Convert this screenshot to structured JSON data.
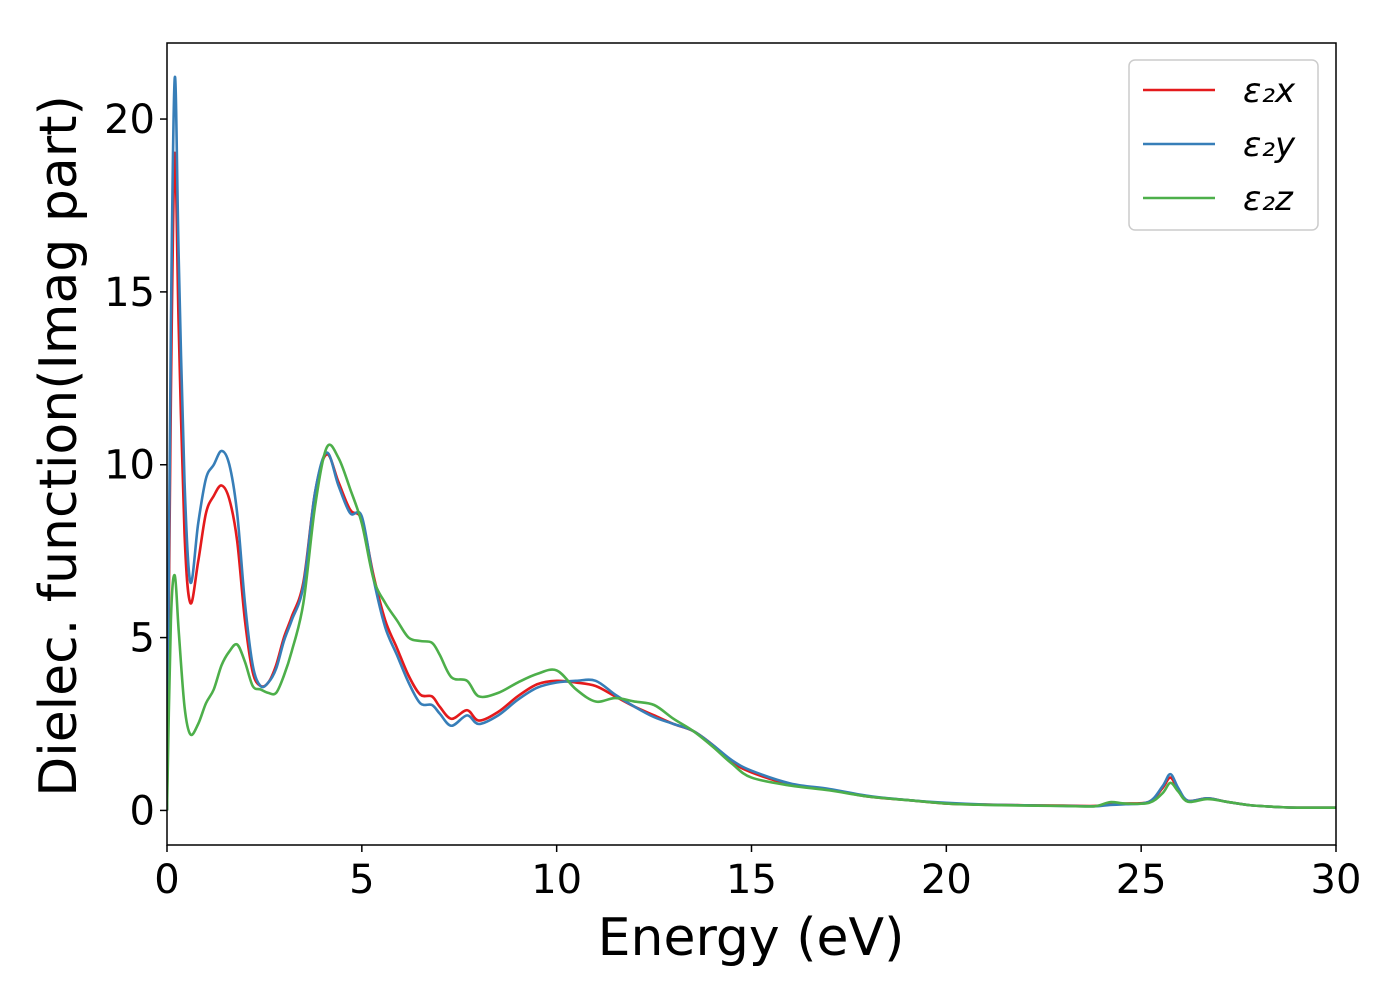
{
  "chart_data": {
    "type": "line",
    "title": "",
    "xlabel": "Energy (eV)",
    "ylabel": "Dielec. function(Imag part)",
    "xlim": [
      0,
      30
    ],
    "ylim": [
      -1,
      22.2
    ],
    "xticks": [
      0,
      5,
      10,
      15,
      20,
      25,
      30
    ],
    "xtick_labels": [
      "0",
      "5",
      "10",
      "15",
      "20",
      "25",
      "30"
    ],
    "yticks": [
      0,
      5,
      10,
      15,
      20
    ],
    "ytick_labels": [
      "0",
      "5",
      "10",
      "15",
      "20"
    ],
    "grid": false,
    "legend_position": "top-right",
    "series": [
      {
        "name": "ε₂x",
        "color": "#e41a1c",
        "x": [
          0,
          0.1,
          0.2,
          0.3,
          0.45,
          0.6,
          0.8,
          1.0,
          1.2,
          1.4,
          1.6,
          1.8,
          2.0,
          2.2,
          2.4,
          2.6,
          2.8,
          3.0,
          3.2,
          3.5,
          3.8,
          4.1,
          4.4,
          4.7,
          5.0,
          5.3,
          5.6,
          5.9,
          6.2,
          6.5,
          6.8,
          7.0,
          7.3,
          7.7,
          8.0,
          8.5,
          9.0,
          9.5,
          10.0,
          10.5,
          11.0,
          11.5,
          12.0,
          12.5,
          13.0,
          13.5,
          14.0,
          14.5,
          15.0,
          16.0,
          17.0,
          18.0,
          19.0,
          20.0,
          21.0,
          22.0,
          23.0,
          23.8,
          24.2,
          24.6,
          25.2,
          25.55,
          25.75,
          25.95,
          26.2,
          26.7,
          27.2,
          27.8,
          28.5,
          29.0,
          30.0
        ],
        "y": [
          0,
          12,
          19,
          14,
          8,
          6,
          7.2,
          8.6,
          9.1,
          9.4,
          9.0,
          7.8,
          5.5,
          4.0,
          3.6,
          3.7,
          4.2,
          5.0,
          5.6,
          6.6,
          9.2,
          10.3,
          9.5,
          8.7,
          8.4,
          6.8,
          5.5,
          4.7,
          3.9,
          3.35,
          3.3,
          3.0,
          2.65,
          2.9,
          2.6,
          2.85,
          3.3,
          3.65,
          3.75,
          3.7,
          3.6,
          3.3,
          3.0,
          2.75,
          2.5,
          2.3,
          1.9,
          1.4,
          1.1,
          0.75,
          0.6,
          0.4,
          0.3,
          0.2,
          0.17,
          0.15,
          0.14,
          0.13,
          0.18,
          0.2,
          0.25,
          0.65,
          0.95,
          0.6,
          0.28,
          0.35,
          0.25,
          0.15,
          0.1,
          0.08,
          0.08
        ]
      },
      {
        "name": "ε₂y",
        "color": "#377eb8",
        "x": [
          0,
          0.1,
          0.2,
          0.3,
          0.45,
          0.6,
          0.8,
          1.0,
          1.2,
          1.4,
          1.6,
          1.8,
          2.0,
          2.2,
          2.4,
          2.6,
          2.8,
          3.0,
          3.2,
          3.5,
          3.8,
          4.1,
          4.4,
          4.7,
          5.0,
          5.3,
          5.6,
          5.9,
          6.2,
          6.5,
          6.8,
          7.0,
          7.3,
          7.7,
          8.0,
          8.5,
          9.0,
          9.5,
          10.0,
          10.5,
          11.0,
          11.5,
          12.0,
          12.5,
          13.0,
          13.5,
          14.0,
          14.5,
          15.0,
          16.0,
          17.0,
          18.0,
          19.0,
          20.0,
          21.0,
          22.0,
          23.0,
          23.8,
          24.2,
          24.6,
          25.2,
          25.55,
          25.75,
          25.95,
          26.2,
          26.7,
          27.2,
          27.8,
          28.5,
          29.0,
          30.0
        ],
        "y": [
          0,
          14,
          21.2,
          16,
          9.5,
          6.6,
          8.3,
          9.6,
          10.0,
          10.4,
          10.0,
          8.6,
          6.0,
          4.2,
          3.6,
          3.7,
          4.1,
          4.9,
          5.5,
          6.5,
          9.2,
          10.35,
          9.4,
          8.6,
          8.5,
          6.7,
          5.3,
          4.5,
          3.7,
          3.1,
          3.05,
          2.8,
          2.45,
          2.75,
          2.5,
          2.75,
          3.2,
          3.55,
          3.7,
          3.75,
          3.75,
          3.35,
          3.0,
          2.7,
          2.5,
          2.3,
          1.9,
          1.45,
          1.15,
          0.78,
          0.62,
          0.42,
          0.3,
          0.22,
          0.17,
          0.15,
          0.13,
          0.12,
          0.16,
          0.18,
          0.25,
          0.7,
          1.05,
          0.65,
          0.28,
          0.35,
          0.25,
          0.15,
          0.1,
          0.08,
          0.08
        ]
      },
      {
        "name": "ε₂z",
        "color": "#4daf4a",
        "x": [
          0,
          0.1,
          0.2,
          0.3,
          0.45,
          0.6,
          0.8,
          1.0,
          1.2,
          1.4,
          1.6,
          1.8,
          2.0,
          2.2,
          2.4,
          2.6,
          2.8,
          3.0,
          3.2,
          3.5,
          3.8,
          4.1,
          4.4,
          4.7,
          5.0,
          5.3,
          5.6,
          5.9,
          6.2,
          6.5,
          6.8,
          7.0,
          7.3,
          7.7,
          8.0,
          8.5,
          9.0,
          9.5,
          10.0,
          10.5,
          11.0,
          11.5,
          12.0,
          12.5,
          13.0,
          13.5,
          14.0,
          14.5,
          15.0,
          16.0,
          17.0,
          18.0,
          19.0,
          20.0,
          21.0,
          22.0,
          23.0,
          23.8,
          24.2,
          24.6,
          25.2,
          25.55,
          25.75,
          25.95,
          26.2,
          26.7,
          27.2,
          27.8,
          28.5,
          29.0,
          30.0
        ],
        "y": [
          0,
          5.5,
          6.8,
          5.2,
          3.0,
          2.2,
          2.5,
          3.1,
          3.5,
          4.2,
          4.6,
          4.8,
          4.3,
          3.6,
          3.5,
          3.4,
          3.4,
          3.9,
          4.6,
          6.0,
          8.8,
          10.5,
          10.2,
          9.3,
          8.3,
          6.7,
          6.0,
          5.5,
          5.0,
          4.9,
          4.85,
          4.5,
          3.85,
          3.75,
          3.3,
          3.4,
          3.7,
          3.95,
          4.05,
          3.5,
          3.15,
          3.25,
          3.15,
          3.05,
          2.65,
          2.3,
          1.85,
          1.35,
          0.95,
          0.72,
          0.58,
          0.4,
          0.3,
          0.2,
          0.16,
          0.14,
          0.13,
          0.12,
          0.24,
          0.2,
          0.22,
          0.5,
          0.8,
          0.55,
          0.25,
          0.33,
          0.25,
          0.15,
          0.1,
          0.08,
          0.08
        ]
      }
    ]
  }
}
